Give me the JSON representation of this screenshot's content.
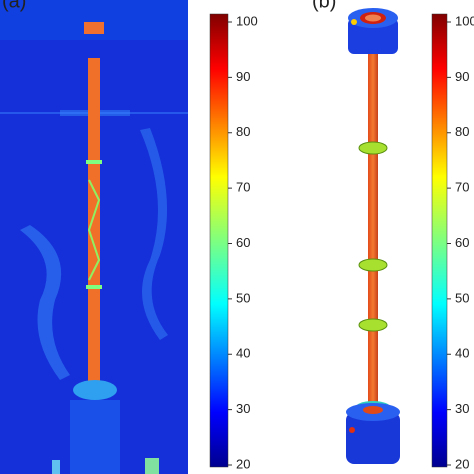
{
  "panels": [
    {
      "label": "(a)",
      "colorbar": {
        "ticks": [
          100,
          90,
          80,
          70,
          60,
          50,
          40,
          30,
          20
        ]
      }
    },
    {
      "label": "(b)",
      "colorbar": {
        "ticks": [
          100,
          90,
          80,
          70,
          60,
          50,
          40,
          30,
          20
        ]
      }
    }
  ]
}
